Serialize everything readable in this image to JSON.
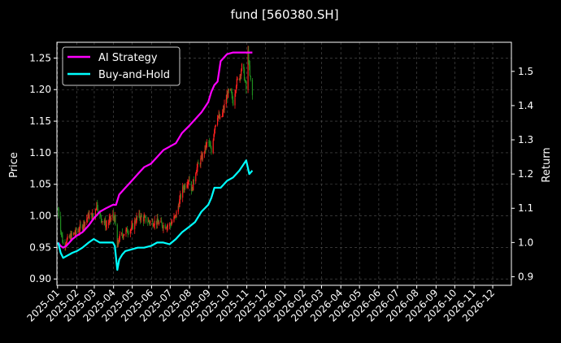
{
  "chart_data": {
    "type": "line",
    "title": "fund [560380.SH]",
    "ylabel_left": "Price",
    "ylabel_right": "Return",
    "grid": true,
    "legend_placement": "upper-left",
    "colors": {
      "background": "#000000",
      "axes": "#ffffff",
      "grid": "#555555",
      "ai_strategy": "#ff00ff",
      "buy_and_hold": "#00ffff",
      "candle_up": "#ff2020",
      "candle_down": "#1f8f1f"
    },
    "x_ticks": [
      "2025-01",
      "2025-02",
      "2025-03",
      "2025-04",
      "2025-05",
      "2025-06",
      "2025-07",
      "2025-08",
      "2025-09",
      "2025-10",
      "2025-11",
      "2025-12",
      "2026-01",
      "2026-02",
      "2026-03",
      "2026-04",
      "2026-05",
      "2026-06",
      "2026-07",
      "2026-08",
      "2026-09",
      "2026-10",
      "2026-11",
      "2026-12"
    ],
    "x_range": [
      "2024-12-31",
      "2026-12-31"
    ],
    "y_left_range": [
      0.89,
      1.275
    ],
    "y_left_ticks": [
      "0.90",
      "0.95",
      "1.00",
      "1.05",
      "1.10",
      "1.15",
      "1.20",
      "1.25"
    ],
    "y_right_range": [
      0.875,
      1.585
    ],
    "y_right_ticks": [
      "0.9",
      "1.0",
      "1.1",
      "1.2",
      "1.3",
      "1.4",
      "1.5"
    ],
    "legend": [
      {
        "label": "AI Strategy",
        "color": "#ff00ff"
      },
      {
        "label": "Buy-and-Hold",
        "color": "#00ffff"
      }
    ],
    "series": [
      {
        "name": "AI Strategy",
        "axis": "right",
        "x": [
          "2025-01-02",
          "2025-01-06",
          "2025-01-10",
          "2025-01-15",
          "2025-01-20",
          "2025-01-25",
          "2025-02-01",
          "2025-02-10",
          "2025-02-20",
          "2025-02-28",
          "2025-03-10",
          "2025-03-20",
          "2025-03-31",
          "2025-04-05",
          "2025-04-10",
          "2025-04-20",
          "2025-04-30",
          "2025-05-10",
          "2025-05-20",
          "2025-05-31",
          "2025-06-10",
          "2025-06-20",
          "2025-06-30",
          "2025-07-10",
          "2025-07-20",
          "2025-07-31",
          "2025-08-10",
          "2025-08-20",
          "2025-08-31",
          "2025-09-05",
          "2025-09-10",
          "2025-09-15",
          "2025-09-20",
          "2025-09-30",
          "2025-10-10",
          "2025-10-20",
          "2025-10-31",
          "2025-11-05",
          "2025-11-10"
        ],
        "values": [
          1.0,
          0.99,
          0.985,
          0.99,
          1.0,
          1.01,
          1.02,
          1.03,
          1.05,
          1.07,
          1.09,
          1.1,
          1.11,
          1.11,
          1.14,
          1.16,
          1.18,
          1.2,
          1.22,
          1.23,
          1.25,
          1.27,
          1.28,
          1.29,
          1.32,
          1.34,
          1.36,
          1.38,
          1.41,
          1.44,
          1.46,
          1.47,
          1.53,
          1.55,
          1.555,
          1.555,
          1.555,
          1.555,
          1.555
        ]
      },
      {
        "name": "Buy-and-Hold",
        "axis": "right",
        "x": [
          "2025-01-02",
          "2025-01-06",
          "2025-01-10",
          "2025-01-15",
          "2025-01-20",
          "2025-01-25",
          "2025-02-01",
          "2025-02-10",
          "2025-02-20",
          "2025-02-28",
          "2025-03-10",
          "2025-03-20",
          "2025-03-31",
          "2025-04-03",
          "2025-04-07",
          "2025-04-10",
          "2025-04-15",
          "2025-04-20",
          "2025-04-30",
          "2025-05-10",
          "2025-05-20",
          "2025-05-31",
          "2025-06-10",
          "2025-06-20",
          "2025-06-30",
          "2025-07-10",
          "2025-07-20",
          "2025-07-31",
          "2025-08-10",
          "2025-08-20",
          "2025-08-31",
          "2025-09-05",
          "2025-09-10",
          "2025-09-20",
          "2025-09-30",
          "2025-10-10",
          "2025-10-20",
          "2025-10-31",
          "2025-11-05",
          "2025-11-10"
        ],
        "values": [
          1.0,
          0.97,
          0.955,
          0.96,
          0.965,
          0.97,
          0.975,
          0.985,
          1.0,
          1.01,
          1.0,
          1.0,
          1.0,
          0.99,
          0.92,
          0.95,
          0.965,
          0.975,
          0.98,
          0.985,
          0.985,
          0.99,
          1.0,
          1.0,
          0.995,
          1.01,
          1.03,
          1.045,
          1.06,
          1.09,
          1.11,
          1.13,
          1.16,
          1.16,
          1.18,
          1.19,
          1.21,
          1.24,
          1.2,
          1.21
        ]
      }
    ],
    "price_points": {
      "axis": "left",
      "x": [
        "2025-01-02",
        "2025-01-06",
        "2025-01-10",
        "2025-01-15",
        "2025-01-20",
        "2025-01-25",
        "2025-02-01",
        "2025-02-10",
        "2025-02-20",
        "2025-02-28",
        "2025-03-05",
        "2025-03-10",
        "2025-03-20",
        "2025-03-31",
        "2025-04-03",
        "2025-04-07",
        "2025-04-10",
        "2025-04-15",
        "2025-04-20",
        "2025-04-30",
        "2025-05-10",
        "2025-05-20",
        "2025-05-31",
        "2025-06-10",
        "2025-06-20",
        "2025-06-30",
        "2025-07-10",
        "2025-07-20",
        "2025-07-31",
        "2025-08-05",
        "2025-08-10",
        "2025-08-20",
        "2025-08-31",
        "2025-09-05",
        "2025-09-10",
        "2025-09-15",
        "2025-09-20",
        "2025-09-25",
        "2025-09-30",
        "2025-10-05",
        "2025-10-10",
        "2025-10-15",
        "2025-10-20",
        "2025-10-25",
        "2025-10-31",
        "2025-11-03",
        "2025-11-06",
        "2025-11-10"
      ],
      "values": [
        1.01,
        0.98,
        0.955,
        0.96,
        0.965,
        0.97,
        0.975,
        0.985,
        1.0,
        1.0,
        1.02,
        1.0,
        0.985,
        1.0,
        0.995,
        0.95,
        0.965,
        0.97,
        0.975,
        0.98,
        1.0,
        0.995,
        0.99,
        0.99,
        0.985,
        0.985,
        1.0,
        1.04,
        1.06,
        1.04,
        1.07,
        1.09,
        1.12,
        1.1,
        1.14,
        1.16,
        1.15,
        1.17,
        1.19,
        1.2,
        1.18,
        1.21,
        1.22,
        1.24,
        1.2,
        1.26,
        1.22,
        1.19
      ]
    }
  }
}
